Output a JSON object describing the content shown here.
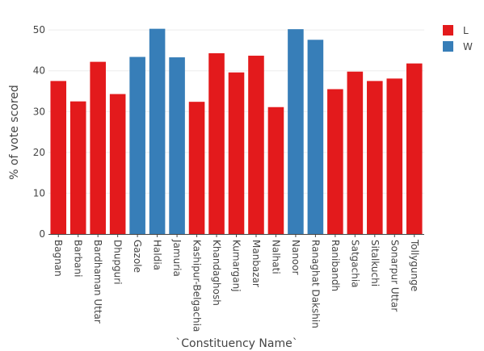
{
  "chart_data": {
    "type": "bar",
    "xlabel": "`Constituency Name`",
    "ylabel": "% of vote scored",
    "ylim": [
      0,
      53
    ],
    "yticks": [
      0,
      10,
      20,
      30,
      40,
      50
    ],
    "grid": true,
    "legend_position": "top-right",
    "categories": [
      "Bagnan",
      "Barbani",
      "Bardhaman Uttar",
      "Dhupguri",
      "Gazole",
      "Haldia",
      "Jamuria",
      "Kashipur-Belgachia",
      "Khandaghosh",
      "Kumarganj",
      "Manbazar",
      "Nalhati",
      "Nanoor",
      "Ranaghat Dakshin",
      "Ranibandh",
      "Satgachia",
      "Sitalkuchi",
      "Sonarpur Uttar",
      "Tollygunge"
    ],
    "values": [
      37.5,
      32.5,
      42.2,
      34.3,
      43.4,
      50.3,
      43.3,
      32.4,
      44.3,
      39.6,
      43.7,
      31.1,
      50.2,
      47.6,
      35.5,
      39.8,
      37.5,
      38.1,
      41.8
    ],
    "groups": [
      "L",
      "L",
      "L",
      "L",
      "W",
      "W",
      "W",
      "L",
      "L",
      "L",
      "L",
      "L",
      "W",
      "W",
      "L",
      "L",
      "L",
      "L",
      "L"
    ],
    "series": [
      {
        "name": "L",
        "color": "#e31a1c"
      },
      {
        "name": "W",
        "color": "#377eb8"
      }
    ]
  }
}
